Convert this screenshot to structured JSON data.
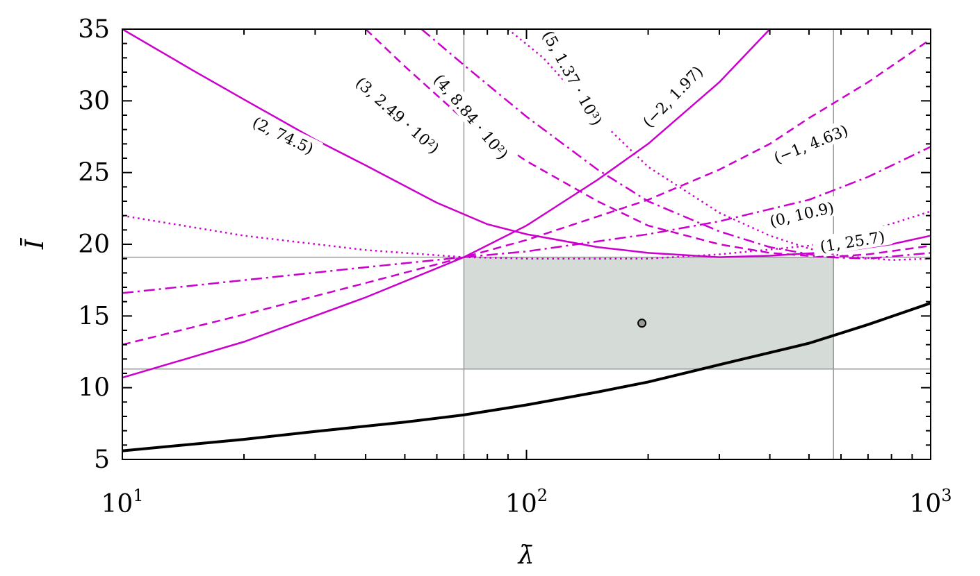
{
  "chart_data": {
    "type": "line",
    "title": "",
    "xlabel": "λ̄",
    "ylabel": "Ī",
    "xscale": "log",
    "xlim": [
      10,
      1000
    ],
    "ylim": [
      5,
      35
    ],
    "x_ticks": [
      {
        "value": 10,
        "base": "10",
        "exp": "1"
      },
      {
        "value": 100,
        "base": "10",
        "exp": "2"
      },
      {
        "value": 1000,
        "base": "10",
        "exp": "3"
      }
    ],
    "y_ticks": [
      "5",
      "10",
      "15",
      "20",
      "25",
      "30",
      "35"
    ],
    "grid": false,
    "curve_color": "#cc00cc",
    "region_color": "#d5dbd6",
    "reference_lines": {
      "x": [
        70,
        575
      ],
      "y": [
        11.3,
        19.1
      ],
      "color": "#999999"
    },
    "region": {
      "x": [
        70,
        575
      ],
      "y": [
        11.3,
        19.1
      ]
    },
    "point": {
      "x": 193,
      "y": 14.5
    },
    "series": [
      {
        "label": "(−2, 1.97)",
        "style": "solid",
        "points": [
          [
            10,
            10.7
          ],
          [
            20,
            13.2
          ],
          [
            40,
            16.3
          ],
          [
            70,
            19.1
          ],
          [
            100,
            21.3
          ],
          [
            150,
            24.5
          ],
          [
            200,
            27.0
          ],
          [
            300,
            31.3
          ],
          [
            400,
            35.0
          ]
        ]
      },
      {
        "label": "(−1, 4.63)",
        "style": "dashed",
        "points": [
          [
            10,
            13.0
          ],
          [
            20,
            15.1
          ],
          [
            40,
            17.3
          ],
          [
            70,
            19.1
          ],
          [
            100,
            20.3
          ],
          [
            200,
            23.1
          ],
          [
            300,
            25.2
          ],
          [
            400,
            27.0
          ],
          [
            500,
            28.8
          ],
          [
            700,
            31.3
          ],
          [
            1000,
            34.3
          ]
        ]
      },
      {
        "label": "(0, 10.9)",
        "style": "dashdot",
        "points": [
          [
            10,
            16.6
          ],
          [
            20,
            17.5
          ],
          [
            40,
            18.4
          ],
          [
            70,
            19.1
          ],
          [
            100,
            19.5
          ],
          [
            200,
            20.7
          ],
          [
            300,
            21.6
          ],
          [
            500,
            23.1
          ],
          [
            700,
            24.7
          ],
          [
            1000,
            26.8
          ]
        ]
      },
      {
        "label": "(1, 25.7)",
        "style": "dotted",
        "points": [
          [
            10,
            22.0
          ],
          [
            20,
            20.6
          ],
          [
            40,
            19.6
          ],
          [
            70,
            19.1
          ],
          [
            100,
            19.0
          ],
          [
            200,
            19.0
          ],
          [
            300,
            19.3
          ],
          [
            500,
            19.9
          ],
          [
            700,
            20.9
          ],
          [
            1000,
            22.3
          ]
        ]
      },
      {
        "label": "(2, 74.5)",
        "style": "solid",
        "points": [
          [
            10,
            35.0
          ],
          [
            15,
            32.1
          ],
          [
            20,
            30.1
          ],
          [
            30,
            27.3
          ],
          [
            40,
            25.5
          ],
          [
            60,
            22.9
          ],
          [
            80,
            21.4
          ],
          [
            100,
            20.7
          ],
          [
            150,
            19.8
          ],
          [
            200,
            19.4
          ],
          [
            300,
            19.1
          ],
          [
            400,
            19.2
          ],
          [
            600,
            19.5
          ],
          [
            800,
            20.0
          ],
          [
            1000,
            20.6
          ]
        ]
      },
      {
        "label": "(3, 2.49 · 10²)",
        "style": "dashed",
        "points": [
          [
            40,
            35.0
          ],
          [
            50,
            32.4
          ],
          [
            70,
            28.7
          ],
          [
            100,
            25.8
          ],
          [
            150,
            23.0
          ],
          [
            200,
            21.3
          ],
          [
            300,
            20.0
          ],
          [
            400,
            19.4
          ],
          [
            550,
            19.1
          ],
          [
            700,
            19.3
          ],
          [
            1000,
            19.9
          ]
        ]
      },
      {
        "label": "(4, 8.84 · 10²)",
        "style": "dashdot",
        "points": [
          [
            55,
            35.0
          ],
          [
            70,
            32.5
          ],
          [
            100,
            28.9
          ],
          [
            150,
            25.2
          ],
          [
            200,
            23.0
          ],
          [
            300,
            20.9
          ],
          [
            400,
            19.8
          ],
          [
            550,
            19.1
          ],
          [
            700,
            19.0
          ],
          [
            1000,
            19.4
          ]
        ]
      },
      {
        "label": "(5, 1.37 · 10³)",
        "style": "dotted",
        "points": [
          [
            90,
            35.0
          ],
          [
            110,
            33.0
          ],
          [
            150,
            28.8
          ],
          [
            200,
            25.4
          ],
          [
            300,
            22.2
          ],
          [
            400,
            20.6
          ],
          [
            500,
            19.7
          ],
          [
            600,
            19.2
          ],
          [
            800,
            18.9
          ],
          [
            1000,
            19.0
          ]
        ]
      },
      {
        "label": "",
        "style": "solid-black",
        "points": [
          [
            10,
            5.6
          ],
          [
            20,
            6.4
          ],
          [
            30,
            6.95
          ],
          [
            50,
            7.6
          ],
          [
            70,
            8.1
          ],
          [
            100,
            8.8
          ],
          [
            150,
            9.7
          ],
          [
            200,
            10.4
          ],
          [
            300,
            11.6
          ],
          [
            500,
            13.1
          ],
          [
            700,
            14.4
          ],
          [
            1000,
            15.9
          ]
        ]
      }
    ]
  }
}
